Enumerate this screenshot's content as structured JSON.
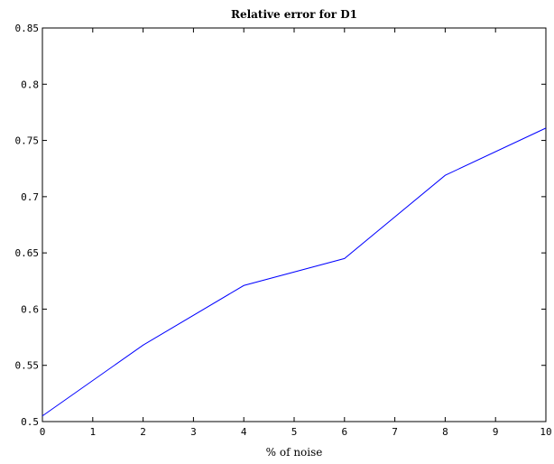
{
  "chart_data": {
    "type": "line",
    "title": "Relative error for D1",
    "xlabel": "% of noise",
    "ylabel": "",
    "xlim": [
      0,
      10
    ],
    "ylim": [
      0.5,
      0.85
    ],
    "x_ticks": [
      0,
      1,
      2,
      3,
      4,
      5,
      6,
      7,
      8,
      9,
      10
    ],
    "x_tick_labels": [
      "0",
      "1",
      "2",
      "3",
      "4",
      "5",
      "6",
      "7",
      "8",
      "9",
      "10"
    ],
    "y_ticks": [
      0.5,
      0.55,
      0.6,
      0.65,
      0.7,
      0.75,
      0.8,
      0.85
    ],
    "y_tick_labels": [
      "0.5",
      "0.55",
      "0.6",
      "0.65",
      "0.7",
      "0.75",
      "0.8",
      "0.85"
    ],
    "grid": false,
    "series": [
      {
        "color": "#0000ff",
        "x": [
          0,
          2,
          4,
          6,
          8,
          10
        ],
        "y": [
          0.505,
          0.568,
          0.621,
          0.645,
          0.719,
          0.761
        ]
      }
    ]
  }
}
